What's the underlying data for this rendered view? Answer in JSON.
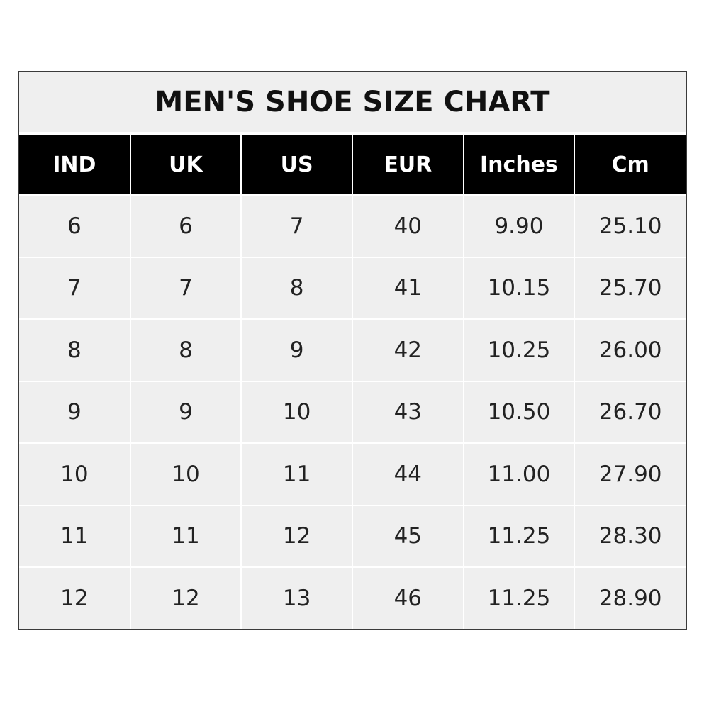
{
  "title": "MEN'S SHOE SIZE CHART",
  "headers": [
    "IND",
    "UK",
    "US",
    "EUR",
    "Inches",
    "Cm"
  ],
  "rows": [
    [
      "6",
      "6",
      "7",
      "40",
      "9.90",
      "25.10"
    ],
    [
      "7",
      "7",
      "8",
      "41",
      "10.15",
      "25.70"
    ],
    [
      "8",
      "8",
      "9",
      "42",
      "10.25",
      "26.00"
    ],
    [
      "9",
      "9",
      "10",
      "43",
      "10.50",
      "26.70"
    ],
    [
      "10",
      "10",
      "11",
      "44",
      "11.00",
      "27.90"
    ],
    [
      "11",
      "11",
      "12",
      "45",
      "11.25",
      "28.30"
    ],
    [
      "12",
      "12",
      "13",
      "46",
      "11.25",
      "28.90"
    ]
  ],
  "colors": {
    "header_bg": "#000000",
    "cell_bg": "#efefef",
    "border": "#3a3a3a"
  }
}
